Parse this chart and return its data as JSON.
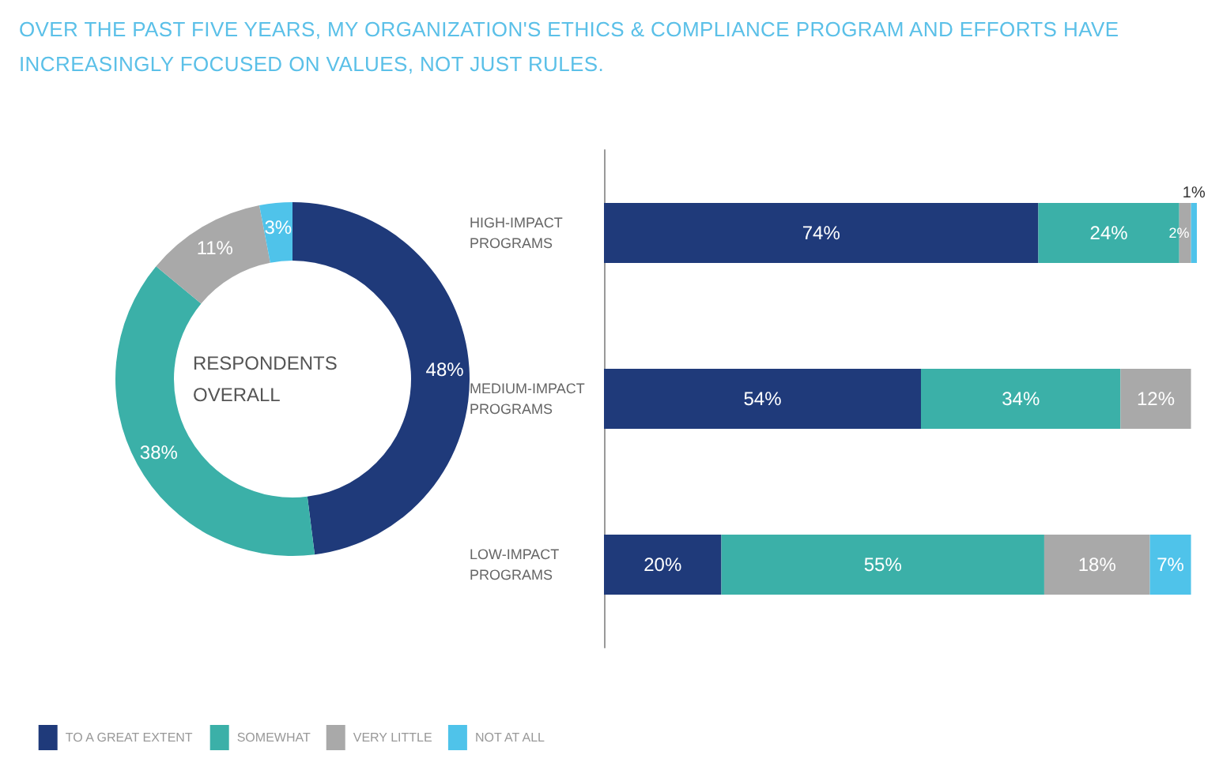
{
  "chart_data": [
    {
      "type": "donut",
      "title": "OVER THE PAST FIVE YEARS, MY ORGANIZATION'S ETHICS & COMPLIANCE PROGRAM AND EFFORTS HAVE INCREASINGLY FOCUSED ON VALUES, NOT JUST RULES.",
      "annotations": [
        "RESPONDENTS OVERALL"
      ],
      "categories": [
        "TO A GREAT EXTENT",
        "SOMEWHAT",
        "VERY LITTLE",
        "NOT AT ALL"
      ],
      "values": [
        48,
        38,
        11,
        3
      ],
      "colors": [
        "#1f3a7a",
        "#3bb0a8",
        "#a9a9a9",
        "#4fc3ea"
      ],
      "value_labels": [
        "48%",
        "38%",
        "11%",
        "3%"
      ],
      "legend": "bottom"
    },
    {
      "type": "bar",
      "orientation": "horizontal",
      "stacked": true,
      "categories": [
        "HIGH-IMPACT PROGRAMS",
        "MEDIUM-IMPACT PROGRAMS",
        "LOW-IMPACT PROGRAMS"
      ],
      "series": [
        {
          "color": "#1f3a7a",
          "values": [
            74,
            54,
            20
          ],
          "value_labels": [
            "74%",
            "54%",
            "20%"
          ]
        },
        {
          "color": "#3bb0a8",
          "values": [
            24,
            34,
            55
          ],
          "value_labels": [
            "24%",
            "34%",
            "55%"
          ]
        },
        {
          "color": "#a9a9a9",
          "values": [
            2,
            12,
            18
          ],
          "value_labels": [
            "2%",
            "12%",
            "18%"
          ]
        },
        {
          "color": "#4fc3ea",
          "values": [
            1,
            null,
            7
          ],
          "value_labels": [
            "1%",
            null,
            "7%"
          ]
        }
      ]
    }
  ]
}
